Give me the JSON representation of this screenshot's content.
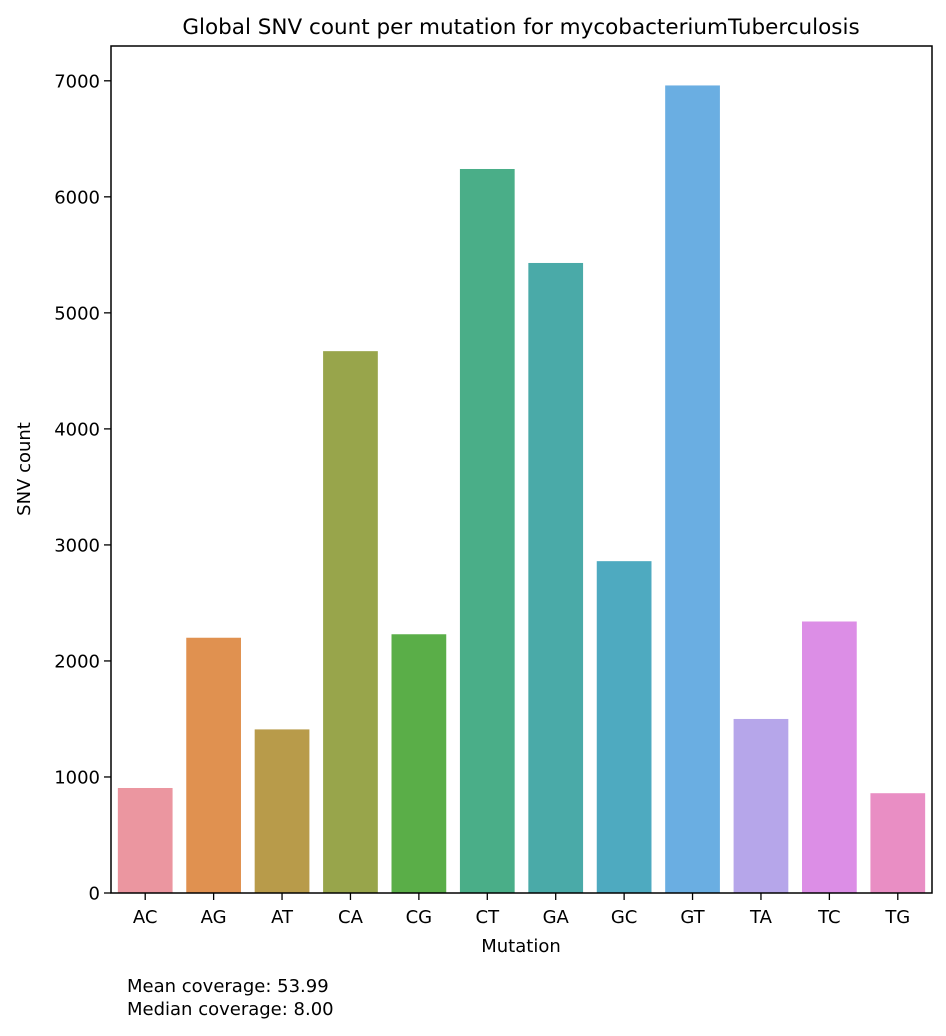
{
  "chart_data": {
    "type": "bar",
    "title": "Global SNV count per mutation for mycobacteriumTuberculosis",
    "xlabel": "Mutation",
    "ylabel": "SNV count",
    "ylim": [
      0,
      7300
    ],
    "yticks": [
      0,
      1000,
      2000,
      3000,
      4000,
      5000,
      6000,
      7000
    ],
    "grid": false,
    "legend": "none",
    "categories": [
      "AC",
      "AG",
      "AT",
      "CA",
      "CG",
      "CT",
      "GA",
      "GC",
      "GT",
      "TA",
      "TC",
      "TG"
    ],
    "values": [
      905,
      2200,
      1410,
      4670,
      2230,
      6240,
      5430,
      2860,
      6960,
      1500,
      2340,
      860
    ],
    "colors": [
      "#eb96a0",
      "#e09150",
      "#b89b4a",
      "#98a54b",
      "#5aae48",
      "#4aae88",
      "#4aaaa8",
      "#4eaac0",
      "#6aaee2",
      "#b6a6ea",
      "#dc8ee6",
      "#e98ec4"
    ]
  },
  "annotations": {
    "mean_coverage": "Mean coverage: 53.99",
    "median_coverage": "Median coverage: 8.00"
  }
}
